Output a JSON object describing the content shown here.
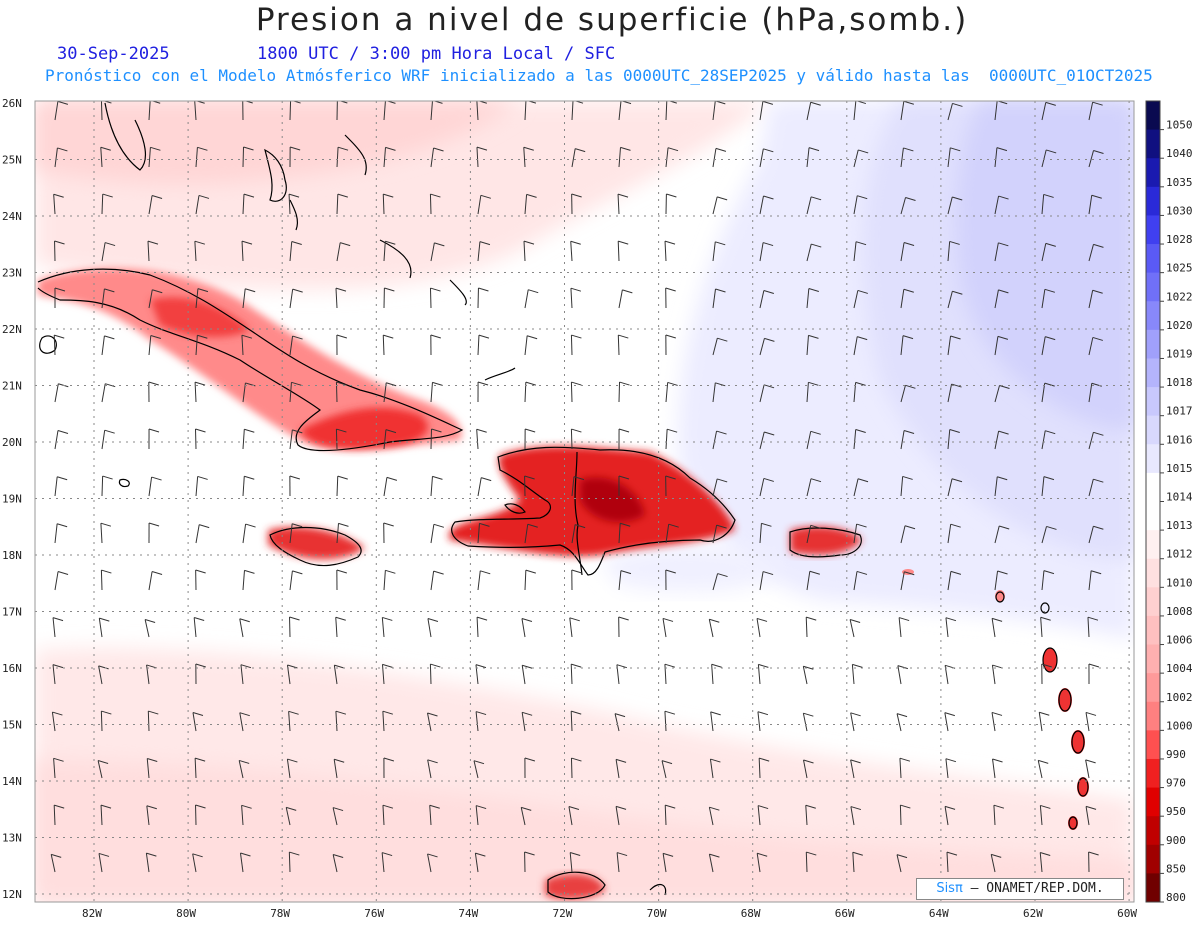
{
  "header": {
    "title": "Presion a nivel de superficie (hPa,somb.)",
    "date": "30-Sep-2025",
    "time": "1800 UTC / 3:00 pm Hora Local / SFC",
    "model_line": "Pronóstico con el Modelo Atmósferico WRF inicializado a las 0000UTC_28SEP2025 y válido hasta las  0000UTC_01OCT2025"
  },
  "axes": {
    "lat_labels": [
      "26N",
      "25N",
      "24N",
      "23N",
      "22N",
      "21N",
      "20N",
      "19N",
      "18N",
      "17N",
      "16N",
      "15N",
      "14N",
      "13N",
      "12N"
    ],
    "lon_labels": [
      "82W",
      "80W",
      "78W",
      "76W",
      "74W",
      "72W",
      "70W",
      "68W",
      "66W",
      "64W",
      "62W",
      "60W"
    ]
  },
  "colorbar": {
    "levels": [
      "1050",
      "1040",
      "1035",
      "1030",
      "1028",
      "1025",
      "1022",
      "1020",
      "1019",
      "1018",
      "1017",
      "1016",
      "1015",
      "1014",
      "1013",
      "1012",
      "1010",
      "1008",
      "1006",
      "1004",
      "1002",
      "1000",
      "990",
      "970",
      "950",
      "900",
      "850",
      "800"
    ],
    "colors": [
      "#0a0a50",
      "#101080",
      "#1a1ab0",
      "#2a2ad8",
      "#4040f0",
      "#5a5af5",
      "#7070f8",
      "#8888fa",
      "#a0a0fb",
      "#b4b4fc",
      "#c8c8fd",
      "#d8d8fd",
      "#e8e8fe",
      "#ffffff",
      "#ffffff",
      "#fff0f0",
      "#ffe0e0",
      "#ffd0d0",
      "#ffc0c0",
      "#ffb0b0",
      "#ff9a9a",
      "#ff8080",
      "#ff5050",
      "#f02020",
      "#e00000",
      "#c00000",
      "#a00000",
      "#700000"
    ]
  },
  "credit": {
    "brand": "Sisπ",
    "text": "– ONAMET/REP.DOM."
  }
}
